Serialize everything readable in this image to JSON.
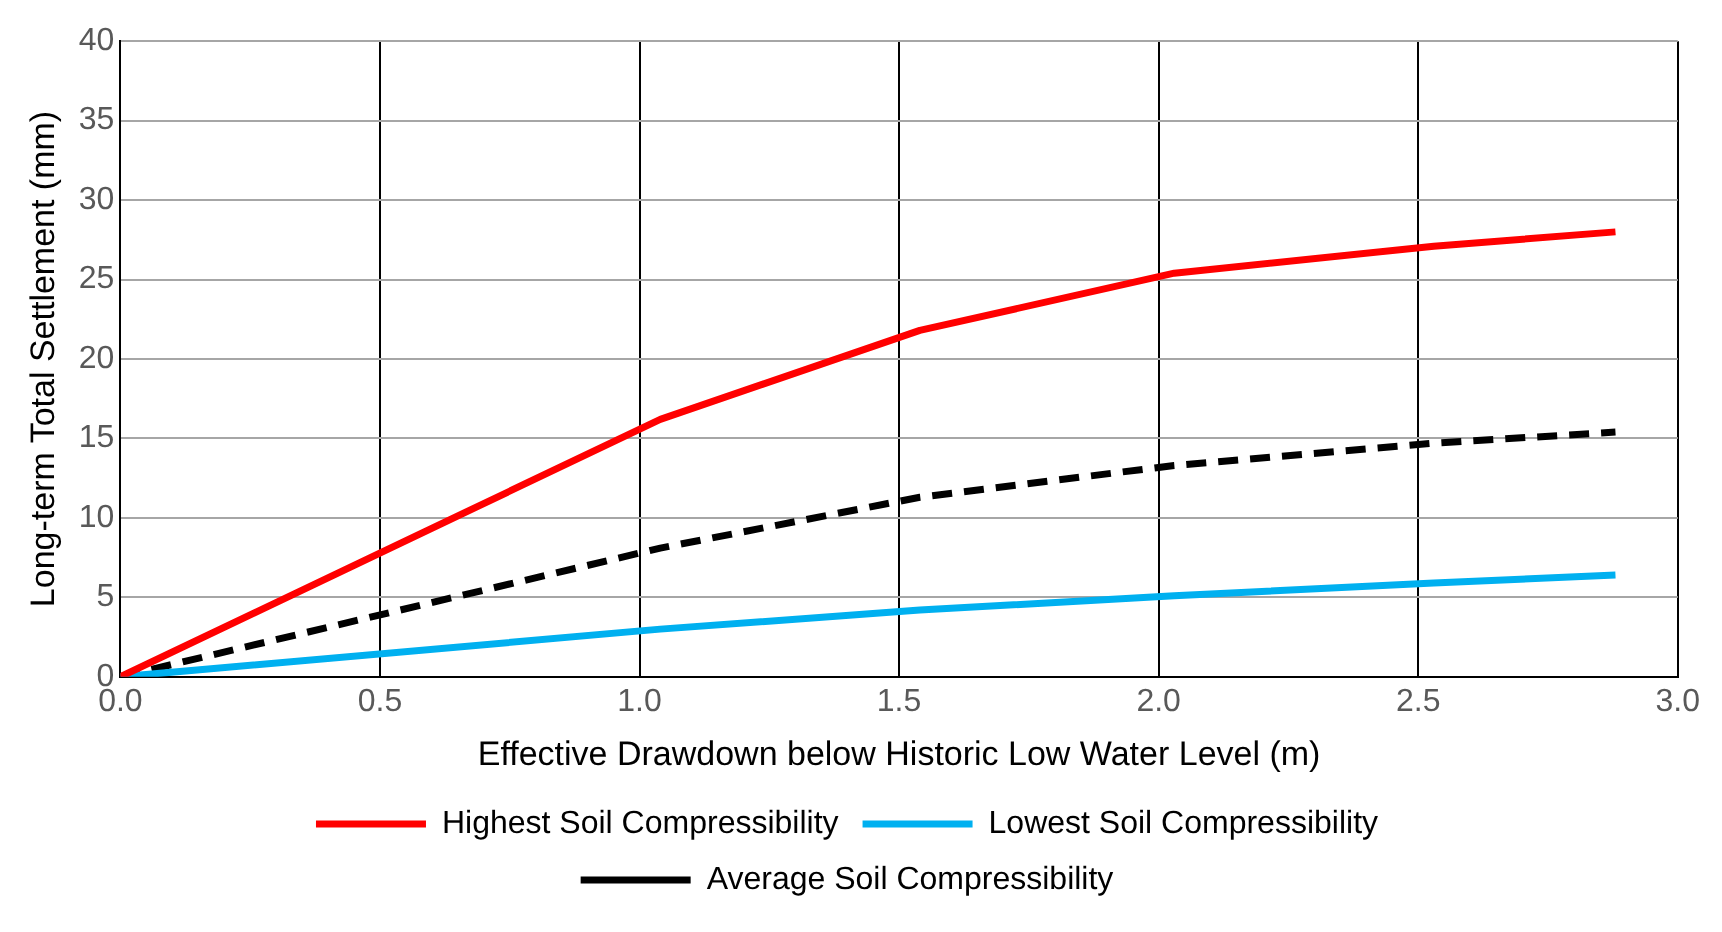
{
  "chart_data": {
    "type": "line",
    "xlabel": "Effective Drawdown below Historic Low Water Level (m)",
    "ylabel": "Long-term Total Settlement (mm)",
    "x": [
      0,
      1.04,
      1.54,
      2.03,
      2.53,
      2.88
    ],
    "series": [
      {
        "name": "Highest Soil Compressibility",
        "color": "#ff0000",
        "values": [
          0,
          16.2,
          21.8,
          25.4,
          27.1,
          28.0
        ]
      },
      {
        "name": "Lowest Soil Compressibility",
        "color": "#00b0f0",
        "values": [
          0,
          3.0,
          4.2,
          5.1,
          5.9,
          6.4
        ]
      },
      {
        "name": "Average Soil Compressibility",
        "color": "#000000",
        "values": [
          0,
          8.1,
          11.3,
          13.3,
          14.7,
          15.4
        ],
        "line_style": "dashed"
      }
    ],
    "xlim": [
      0,
      3
    ],
    "xticks": [
      {
        "value": 0,
        "label": "0.0"
      },
      {
        "value": 0.5,
        "label": "0.5"
      },
      {
        "value": 1,
        "label": "1.0"
      },
      {
        "value": 1.5,
        "label": "1.5"
      },
      {
        "value": 2,
        "label": "2.0"
      },
      {
        "value": 2.5,
        "label": "2.5"
      },
      {
        "value": 3,
        "label": "3.0"
      }
    ],
    "ylim": [
      0,
      40
    ],
    "yticks": [
      0,
      5,
      10,
      15,
      20,
      25,
      30,
      35,
      40
    ],
    "grid": true,
    "legend": "bottom",
    "marker": "none",
    "line_style": "solid"
  }
}
